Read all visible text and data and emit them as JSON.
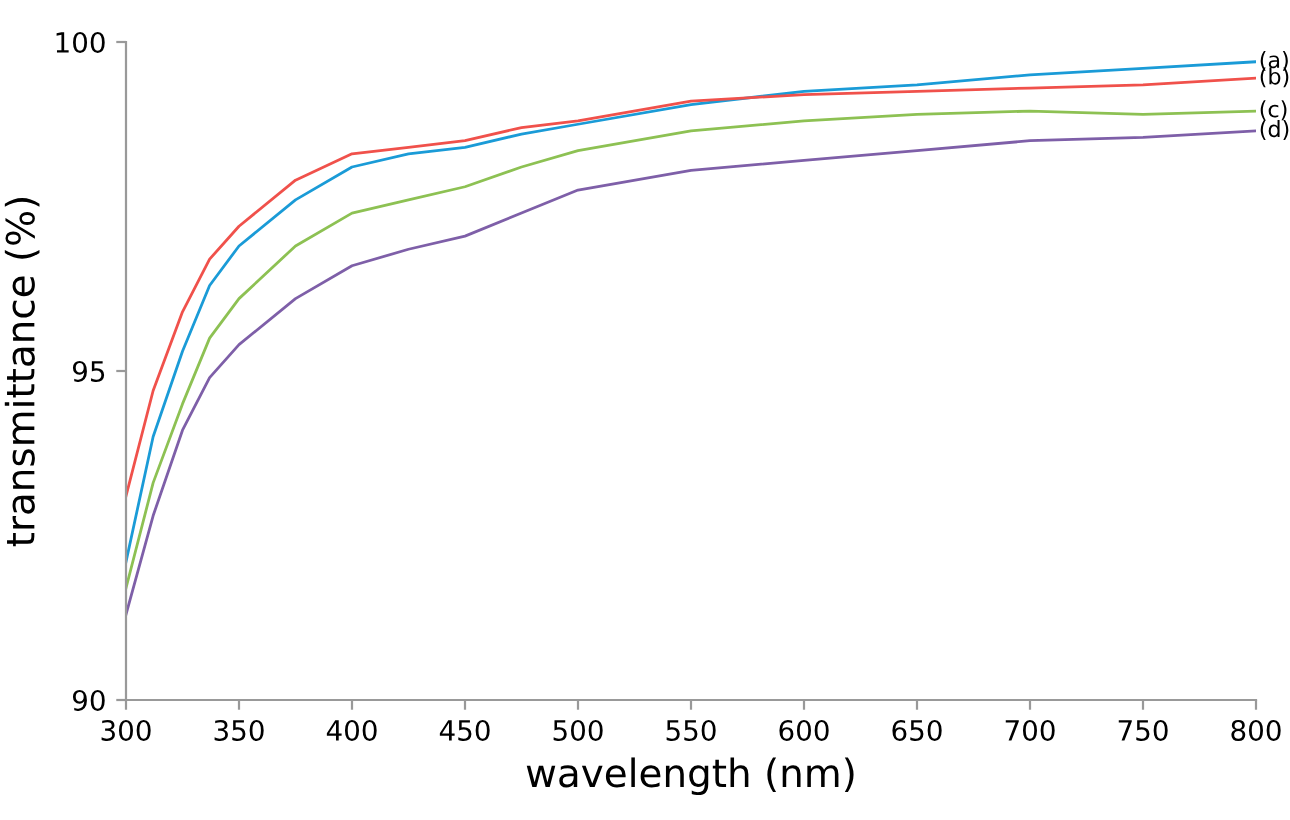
{
  "chart_data": {
    "type": "line",
    "xlabel": "wavelength (nm)",
    "ylabel": "transmittance (%)",
    "x": [
      300,
      312,
      325,
      337,
      350,
      375,
      400,
      425,
      450,
      475,
      500,
      550,
      600,
      650,
      700,
      750,
      800
    ],
    "series": [
      {
        "name": "(a)",
        "color": "#1a9bd7",
        "values": [
          92.1,
          94.0,
          95.3,
          96.3,
          96.9,
          97.6,
          98.1,
          98.3,
          98.4,
          98.6,
          98.75,
          99.05,
          99.25,
          99.35,
          99.5,
          99.6,
          99.7
        ]
      },
      {
        "name": "(b)",
        "color": "#f0514b",
        "values": [
          93.1,
          94.7,
          95.9,
          96.7,
          97.2,
          97.9,
          98.3,
          98.4,
          98.5,
          98.7,
          98.8,
          99.1,
          99.2,
          99.25,
          99.3,
          99.35,
          99.45
        ]
      },
      {
        "name": "(c)",
        "color": "#8dc153",
        "values": [
          91.7,
          93.3,
          94.5,
          95.5,
          96.1,
          96.9,
          97.4,
          97.6,
          97.8,
          98.1,
          98.35,
          98.65,
          98.8,
          98.9,
          98.95,
          98.9,
          98.95
        ]
      },
      {
        "name": "(d)",
        "color": "#7e5fa8",
        "values": [
          91.3,
          92.8,
          94.1,
          94.9,
          95.4,
          96.1,
          96.6,
          96.85,
          97.05,
          97.4,
          97.75,
          98.05,
          98.2,
          98.35,
          98.5,
          98.55,
          98.65
        ]
      }
    ],
    "xlim": [
      300,
      800
    ],
    "ylim": [
      90,
      100
    ],
    "xticks": [
      300,
      350,
      400,
      450,
      500,
      550,
      600,
      650,
      700,
      750,
      800
    ],
    "yticks": [
      90,
      95,
      100
    ],
    "grid": false,
    "legend": false,
    "marker": "none",
    "line_style": "solid"
  }
}
